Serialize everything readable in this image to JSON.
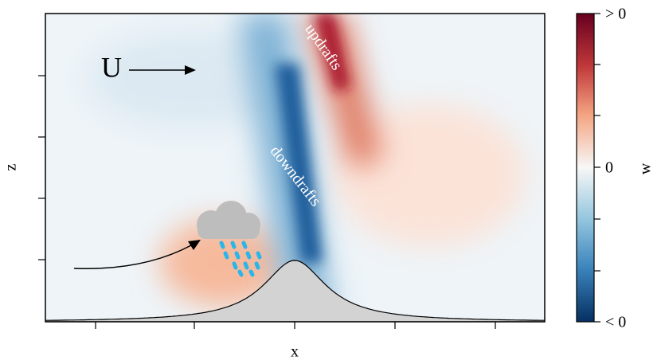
{
  "axes": {
    "xlabel": "x",
    "ylabel": "z"
  },
  "annotations": {
    "wind": "U",
    "updrafts": "updrafts",
    "downdrafts": "downdrafts"
  },
  "colorbar": {
    "label": "w",
    "ticks": [
      "> 0",
      "0",
      "< 0"
    ]
  }
}
